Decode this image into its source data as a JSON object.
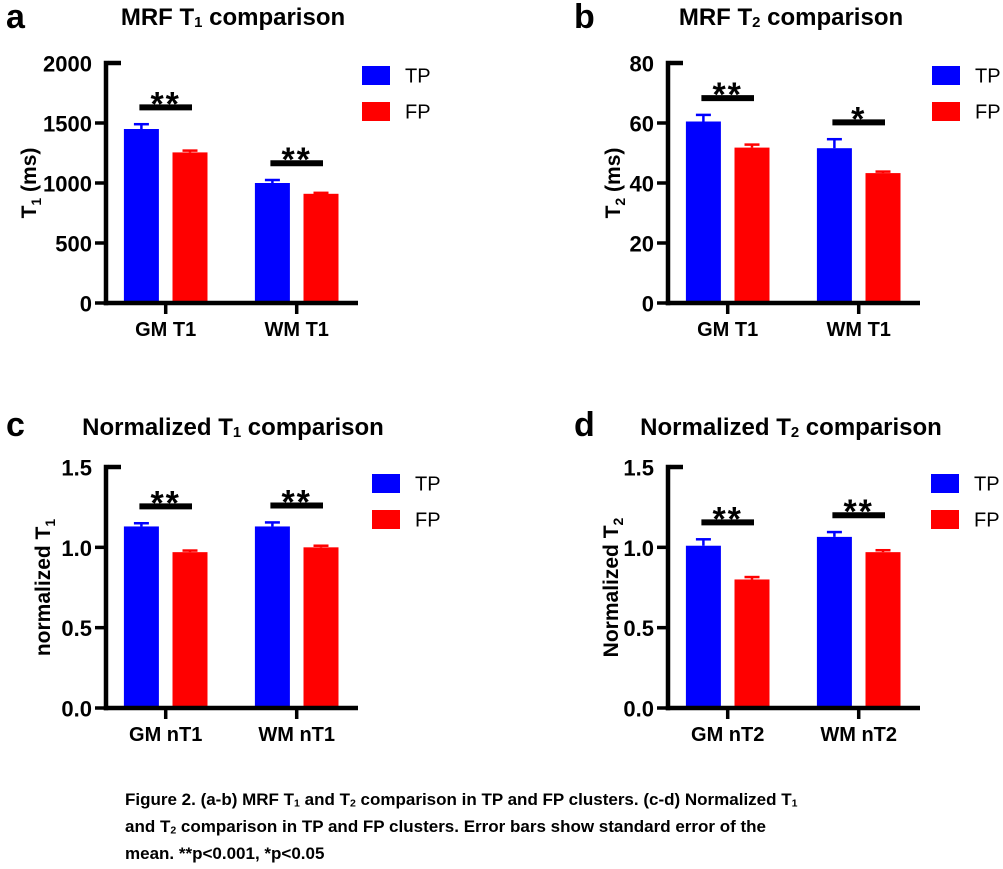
{
  "figure": {
    "caption_lines": [
      [
        {
          "t": "Figure 2. (a-b) MRF T"
        },
        {
          "s": "1"
        },
        {
          "t": " and T"
        },
        {
          "s": "2"
        },
        {
          "t": " comparison in TP and FP clusters. (c-d) Normalized T"
        },
        {
          "s": "1"
        }
      ],
      [
        {
          "t": "and T"
        },
        {
          "s": "2"
        },
        {
          "t": " comparison in TP and FP clusters. Error bars show standard error of the"
        }
      ],
      [
        {
          "t": "mean. **p<0.001, *p<0.05"
        }
      ]
    ]
  },
  "chart_data": [
    {
      "type": "bar",
      "panel": "a",
      "title": "MRF T₁ comparison",
      "title_segments": [
        {
          "t": "MRF T"
        },
        {
          "s": "1"
        },
        {
          "t": " comparison"
        }
      ],
      "ylabel": "T₁ (ms)",
      "ylabel_segments": [
        {
          "t": "T"
        },
        {
          "s": "1"
        },
        {
          "t": " (ms)"
        }
      ],
      "ylim": [
        0,
        2000
      ],
      "yticks": [
        {
          "v": 0,
          "label": "0"
        },
        {
          "v": 500,
          "label": "500"
        },
        {
          "v": 1000,
          "label": "1000"
        },
        {
          "v": 1500,
          "label": "1500"
        },
        {
          "v": 2000,
          "label": "2000"
        }
      ],
      "categories": [
        "GM T1",
        "WM T1"
      ],
      "series": [
        {
          "name": "TP",
          "color": "#0000ff",
          "values": [
            1450,
            1000
          ],
          "errors": [
            40,
            25
          ]
        },
        {
          "name": "FP",
          "color": "#ff0000",
          "values": [
            1255,
            910
          ],
          "errors": [
            15,
            8
          ]
        }
      ],
      "significance": [
        "**",
        "**"
      ],
      "error_bars": "SEM",
      "legend_position": "top-right",
      "grid": false
    },
    {
      "type": "bar",
      "panel": "b",
      "title": "MRF T₂ comparison",
      "title_segments": [
        {
          "t": "MRF T"
        },
        {
          "s": "2"
        },
        {
          "t": " comparison"
        }
      ],
      "ylabel": "T₂ (ms)",
      "ylabel_segments": [
        {
          "t": "T"
        },
        {
          "s": "2"
        },
        {
          "t": " (ms)"
        }
      ],
      "ylim": [
        0,
        80
      ],
      "yticks": [
        {
          "v": 0,
          "label": "0"
        },
        {
          "v": 20,
          "label": "20"
        },
        {
          "v": 40,
          "label": "40"
        },
        {
          "v": 60,
          "label": "60"
        },
        {
          "v": 80,
          "label": "80"
        }
      ],
      "categories": [
        "GM T1",
        "WM T1"
      ],
      "series": [
        {
          "name": "TP",
          "color": "#0000ff",
          "values": [
            60.5,
            51.6
          ],
          "errors": [
            2.2,
            3.0
          ]
        },
        {
          "name": "FP",
          "color": "#ff0000",
          "values": [
            51.8,
            43.3
          ],
          "errors": [
            1.0,
            0.5
          ]
        }
      ],
      "significance": [
        "**",
        "*"
      ],
      "error_bars": "SEM",
      "legend_position": "top-right",
      "grid": false
    },
    {
      "type": "bar",
      "panel": "c",
      "title": "Normalized T₁ comparison",
      "title_segments": [
        {
          "t": "Normalized T"
        },
        {
          "s": "1"
        },
        {
          "t": " comparison"
        }
      ],
      "ylabel": "normalized T₁",
      "ylabel_segments": [
        {
          "t": "normalized T"
        },
        {
          "s": "1"
        }
      ],
      "ylim": [
        0,
        1.5
      ],
      "yticks": [
        {
          "v": 0,
          "label": "0.0"
        },
        {
          "v": 0.5,
          "label": "0.5"
        },
        {
          "v": 1.0,
          "label": "1.0"
        },
        {
          "v": 1.5,
          "label": "1.5"
        }
      ],
      "categories": [
        "GM nT1",
        "WM nT1"
      ],
      "series": [
        {
          "name": "TP",
          "color": "#0000ff",
          "values": [
            1.13,
            1.13
          ],
          "errors": [
            0.02,
            0.025
          ]
        },
        {
          "name": "FP",
          "color": "#ff0000",
          "values": [
            0.97,
            1.0
          ],
          "errors": [
            0.01,
            0.01
          ]
        }
      ],
      "significance": [
        "**",
        "**"
      ],
      "error_bars": "SEM",
      "legend_position": "top-right",
      "grid": false
    },
    {
      "type": "bar",
      "panel": "d",
      "title": "Normalized T₂ comparison",
      "title_segments": [
        {
          "t": "Normalized T"
        },
        {
          "s": "2"
        },
        {
          "t": " comparison"
        }
      ],
      "ylabel": "Normalized T₂",
      "ylabel_segments": [
        {
          "t": "Normalized T"
        },
        {
          "s": "2"
        }
      ],
      "ylim": [
        0,
        1.5
      ],
      "yticks": [
        {
          "v": 0,
          "label": "0.0"
        },
        {
          "v": 0.5,
          "label": "0.5"
        },
        {
          "v": 1.0,
          "label": "1.0"
        },
        {
          "v": 1.5,
          "label": "1.5"
        }
      ],
      "categories": [
        "GM nT2",
        "WM nT2"
      ],
      "series": [
        {
          "name": "TP",
          "color": "#0000ff",
          "values": [
            1.01,
            1.065
          ],
          "errors": [
            0.04,
            0.03
          ]
        },
        {
          "name": "FP",
          "color": "#ff0000",
          "values": [
            0.8,
            0.97
          ],
          "errors": [
            0.015,
            0.012
          ]
        }
      ],
      "significance": [
        "**",
        "**"
      ],
      "error_bars": "SEM",
      "legend_position": "top-right",
      "grid": false
    }
  ]
}
